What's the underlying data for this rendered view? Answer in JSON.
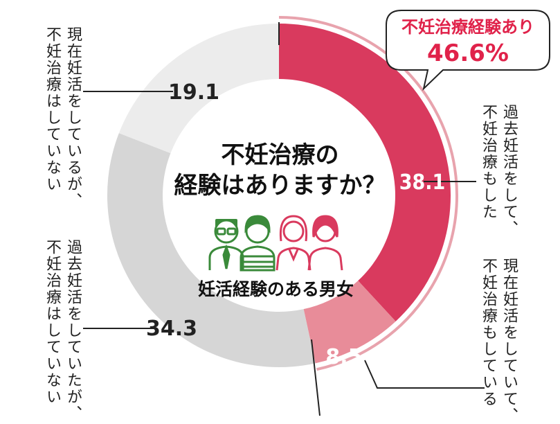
{
  "chart_data": {
    "type": "pie",
    "donut": true,
    "title": "不妊治療の経験はありますか？",
    "subtitle": "妊活経験のある男女",
    "slices": [
      {
        "label": "過去妊活をして、不妊治療もした",
        "value": 38.1,
        "display": "38.1",
        "color": "#d93a5e"
      },
      {
        "label": "現在妊活をしていて、不妊治療もしている",
        "value": 8.5,
        "display": "8.5",
        "color": "#e88c99"
      },
      {
        "label": "過去妊活をしていたが、不妊治療はしていない",
        "value": 34.3,
        "display": "34.3",
        "color": "#d6d6d6"
      },
      {
        "label": "現在妊活をしているが、不妊治療はしていない",
        "value": 19.1,
        "display": "19.1",
        "color": "#ececec"
      }
    ],
    "callout": {
      "label": "不妊治療経験あり",
      "value": "46.6%",
      "color": "#e0224a"
    }
  },
  "labels": {
    "past_treated": "過去妊活をして、\n不妊治療もした",
    "current_treated": "現在妊活をしていて、\n不妊治療もしている",
    "past_untreated": "過去妊活をしていたが、\n不妊治療はしていない",
    "current_untreated": "現在妊活をしているが、\n不妊治療はしていない"
  },
  "icons": [
    "man-with-glasses-icon",
    "man-in-striped-shirt-icon",
    "woman-icon",
    "woman-icon"
  ],
  "colors": {
    "accent": "#e0224a",
    "icon_green": "#3a8a3a",
    "icon_pink": "#d93a5e"
  }
}
